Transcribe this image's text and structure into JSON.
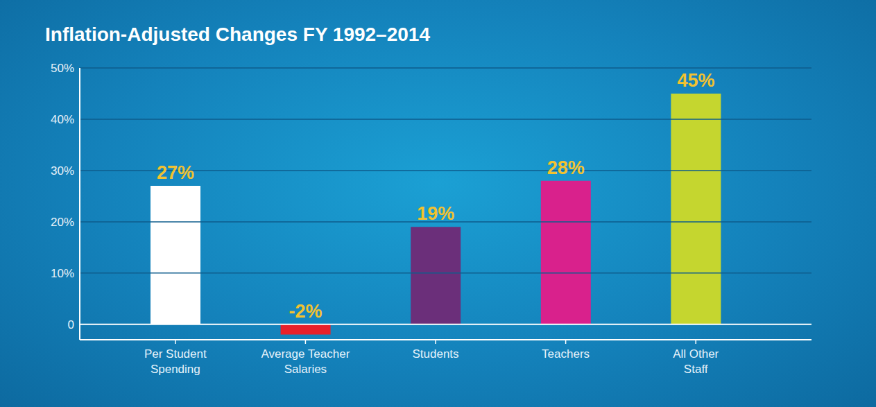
{
  "chart_data": {
    "type": "bar",
    "title": "Inflation-Adjusted Changes FY 1992–2014",
    "categories": [
      "Per Student Spending",
      "Average Teacher Salaries",
      "Students",
      "Teachers",
      "All Other Staff"
    ],
    "values": [
      27,
      -2,
      19,
      28,
      45
    ],
    "value_labels": [
      "27%",
      "-2%",
      "19%",
      "28%",
      "45%"
    ],
    "colors": [
      "#ffffff",
      "#e8202a",
      "#6b2f7a",
      "#d9218c",
      "#c5d62f"
    ],
    "ylim": [
      -3,
      50
    ],
    "yticks": [
      0,
      {
        "value": 10,
        "label": "10%"
      },
      {
        "value": 20,
        "label": "20%"
      },
      {
        "value": 30,
        "label": "30%"
      },
      {
        "value": 40,
        "label": "40%"
      },
      {
        "value": 50,
        "label": "50%"
      }
    ],
    "grid": true,
    "data_labels": true
  }
}
